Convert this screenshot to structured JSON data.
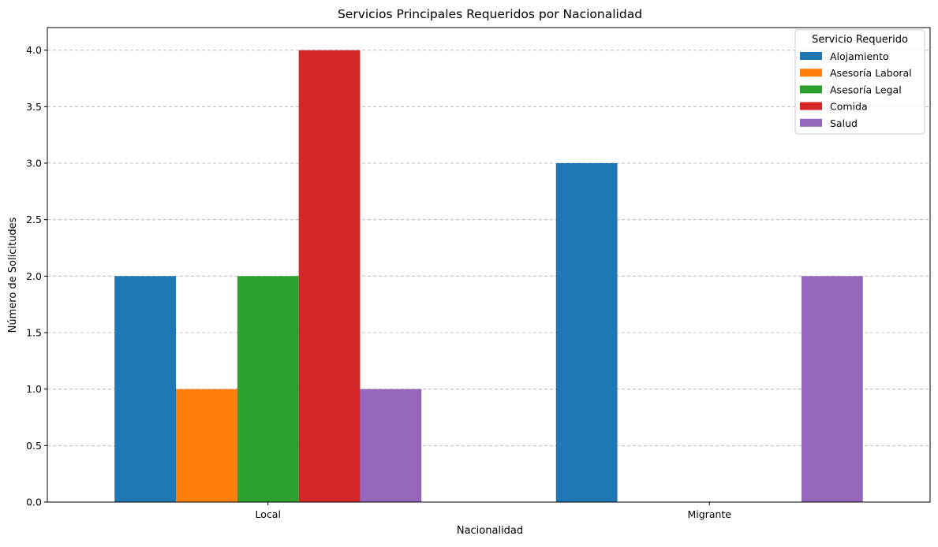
{
  "chart_data": {
    "type": "bar",
    "title": "Servicios Principales Requeridos por Nacionalidad",
    "xlabel": "Nacionalidad",
    "ylabel": "Número de Solicitudes",
    "categories": [
      "Local",
      "Migrante"
    ],
    "ylim": [
      0,
      4.2
    ],
    "yticks": [
      "0.0",
      "0.5",
      "1.0",
      "1.5",
      "2.0",
      "2.5",
      "3.0",
      "3.5",
      "4.0"
    ],
    "grid": "y-dashed",
    "legend_title": "Servicio Requerido",
    "legend_position": "top-right",
    "series": [
      {
        "name": "Alojamiento",
        "color": "#1f77b4",
        "values": [
          2,
          3
        ]
      },
      {
        "name": "Asesoría Laboral",
        "color": "#ff7f0e",
        "values": [
          1,
          0
        ]
      },
      {
        "name": "Asesoría Legal",
        "color": "#2ca02c",
        "values": [
          2,
          0
        ]
      },
      {
        "name": "Comida",
        "color": "#d62728",
        "values": [
          4,
          0
        ]
      },
      {
        "name": "Salud",
        "color": "#9467bd",
        "values": [
          1,
          2
        ]
      }
    ]
  }
}
